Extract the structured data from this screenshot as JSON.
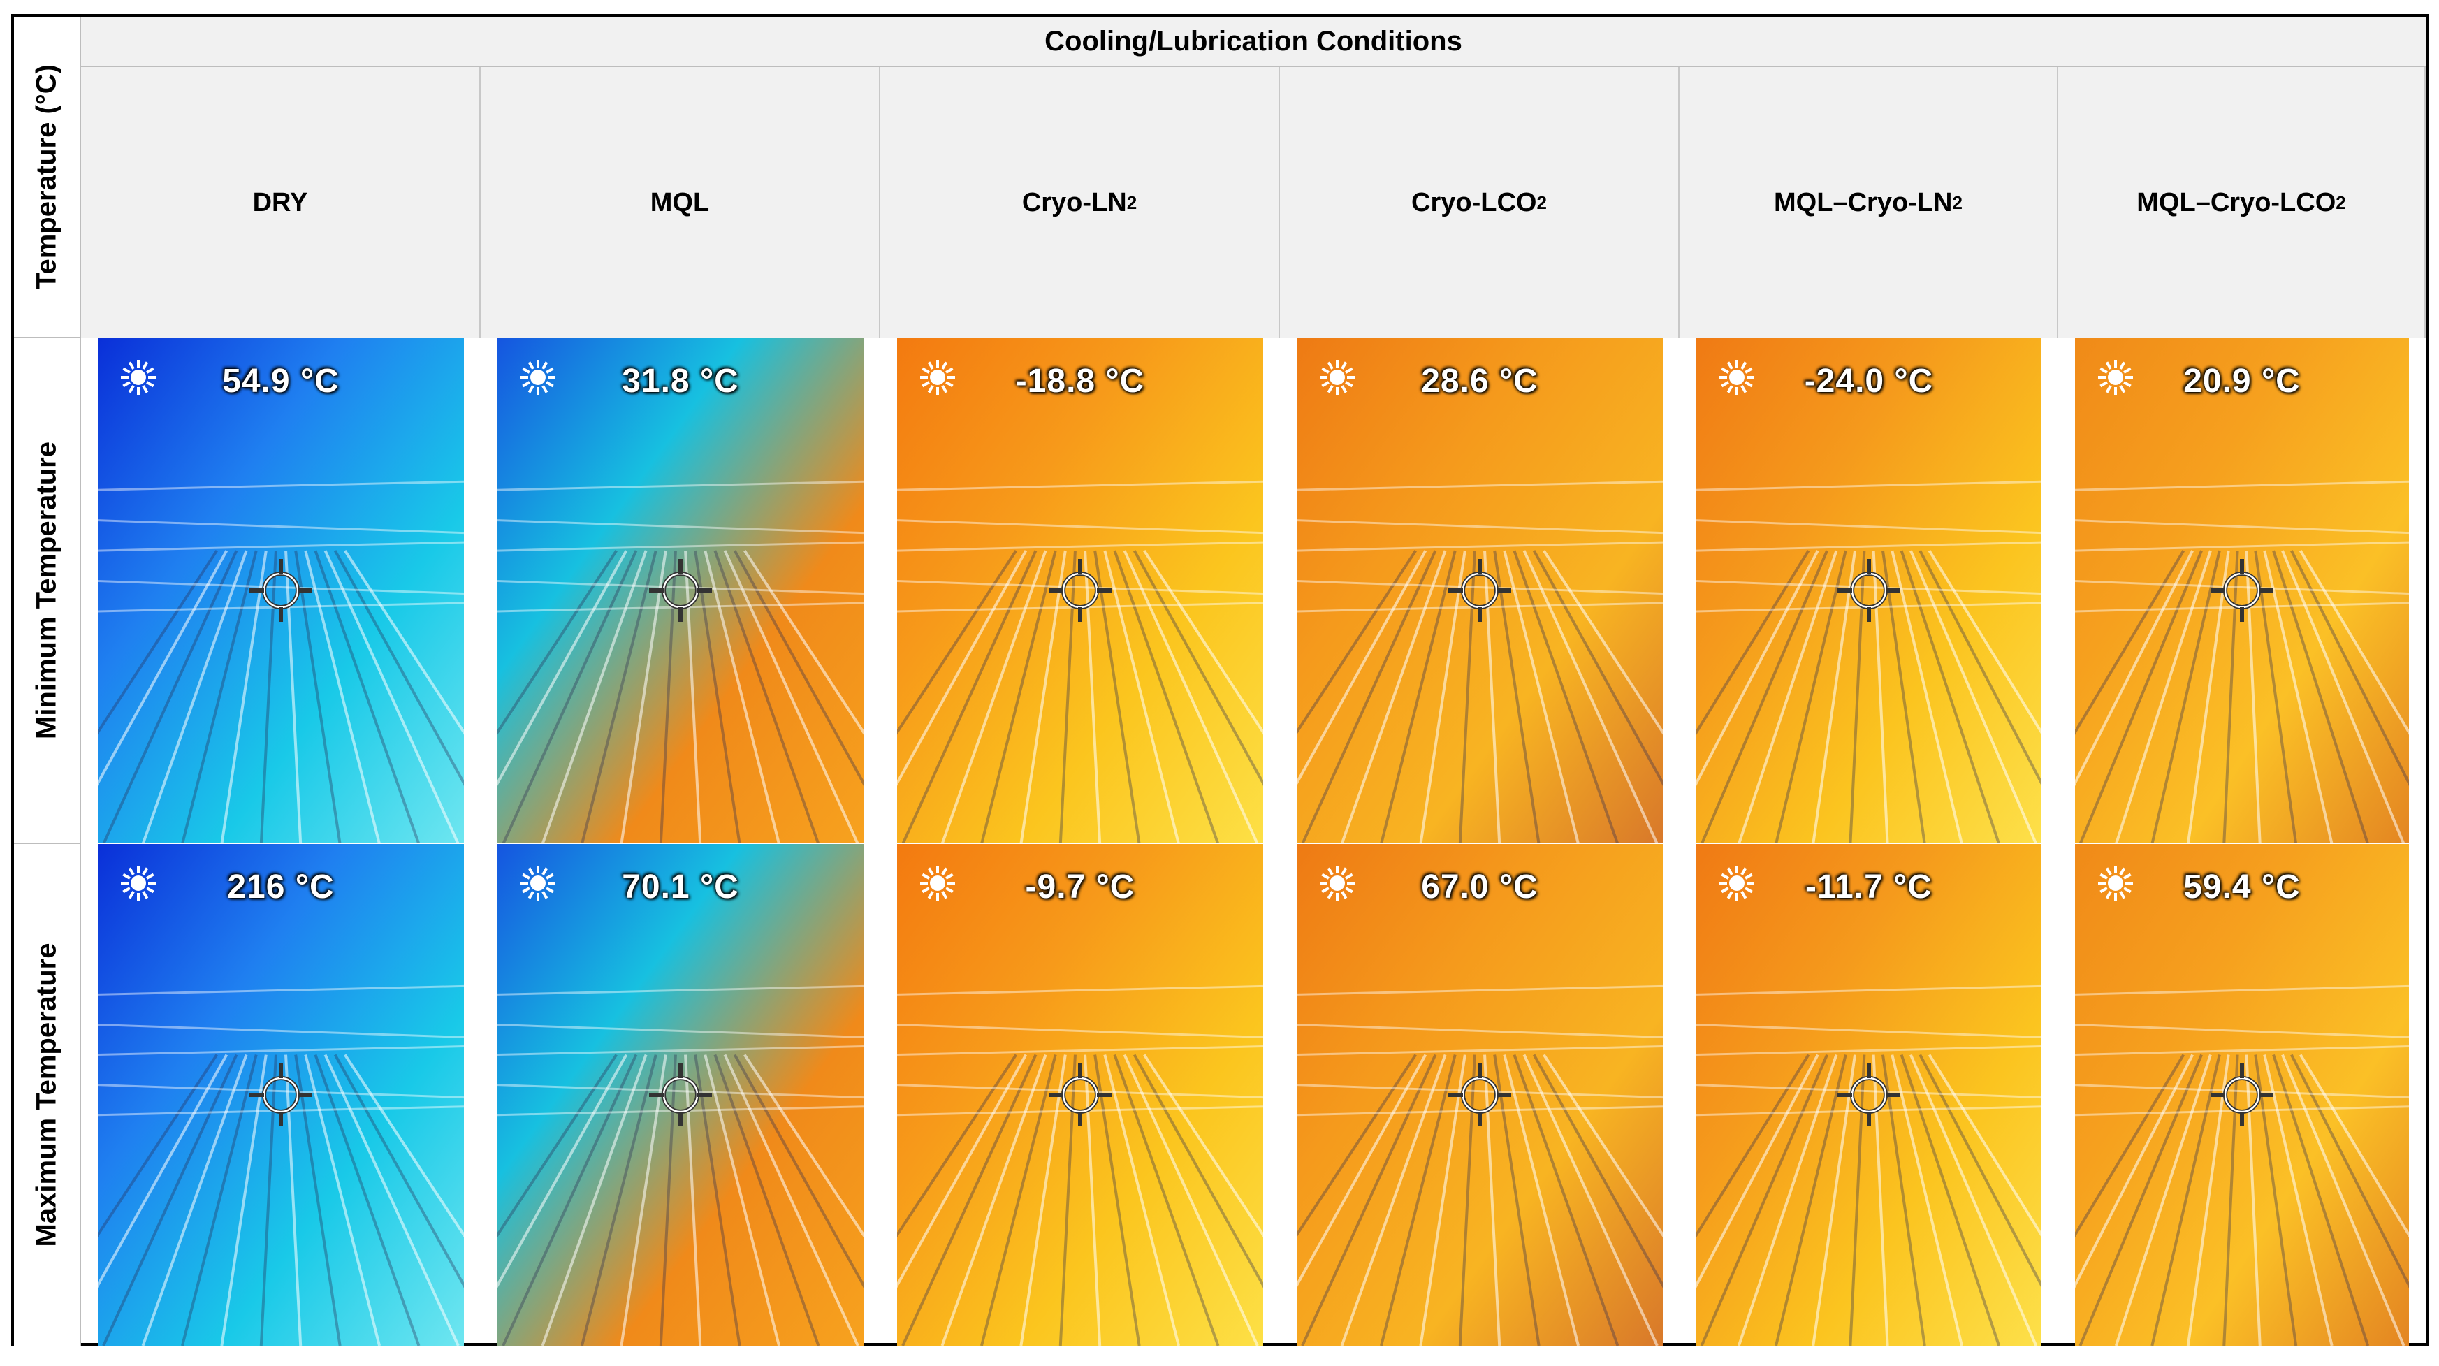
{
  "table": {
    "header_title": "Cooling/Lubrication Conditions",
    "axis_label": "Temperature (°C)",
    "columns": [
      {
        "name": "DRY",
        "base": "DRY",
        "sub": ""
      },
      {
        "name": "MQL",
        "base": "MQL",
        "sub": ""
      },
      {
        "name": "Cryo-LN2",
        "base": "Cryo-LN",
        "sub": "2"
      },
      {
        "name": "Cryo-LCO2",
        "base": "Cryo-LCO",
        "sub": "2"
      },
      {
        "name": "MQL–Cryo-LN2",
        "base": "MQL–Cryo-LN",
        "sub": "2"
      },
      {
        "name": "MQL–Cryo-LCO2",
        "base": "MQL–Cryo-LCO",
        "sub": "2"
      }
    ],
    "rows": [
      {
        "label": "Minimum Temperature",
        "values": [
          "54.9 °C",
          "31.8 °C",
          "-18.8 °C",
          "28.6 °C",
          "-24.0 °C",
          "20.9 °C"
        ]
      },
      {
        "label": "Maximum Temperature",
        "values": [
          "216 °C",
          "70.1 °C",
          "-9.7 °C",
          "67.0 °C",
          "-11.7 °C",
          "59.4 °C"
        ]
      }
    ]
  },
  "thermal_palettes": {
    "DRY": [
      "#0a2fd8",
      "#1f7ff0",
      "#19c9e8",
      "#6fe6f0"
    ],
    "MQL": [
      "#1555e0",
      "#17c0e0",
      "#f08a1a",
      "#f7a21e"
    ],
    "Cryo-LN2": [
      "#f37a10",
      "#f79a1a",
      "#fbc51e",
      "#fde046"
    ],
    "Cryo-LCO2": [
      "#ee7a14",
      "#f59a1c",
      "#f8b422",
      "#d8782a"
    ],
    "MQL–Cryo-LN2": [
      "#f07a14",
      "#f59a1c",
      "#fbc41f",
      "#fde04a"
    ],
    "MQL–Cryo-LCO2": [
      "#f08a18",
      "#f6a01e",
      "#fbc026",
      "#e38522"
    ]
  }
}
